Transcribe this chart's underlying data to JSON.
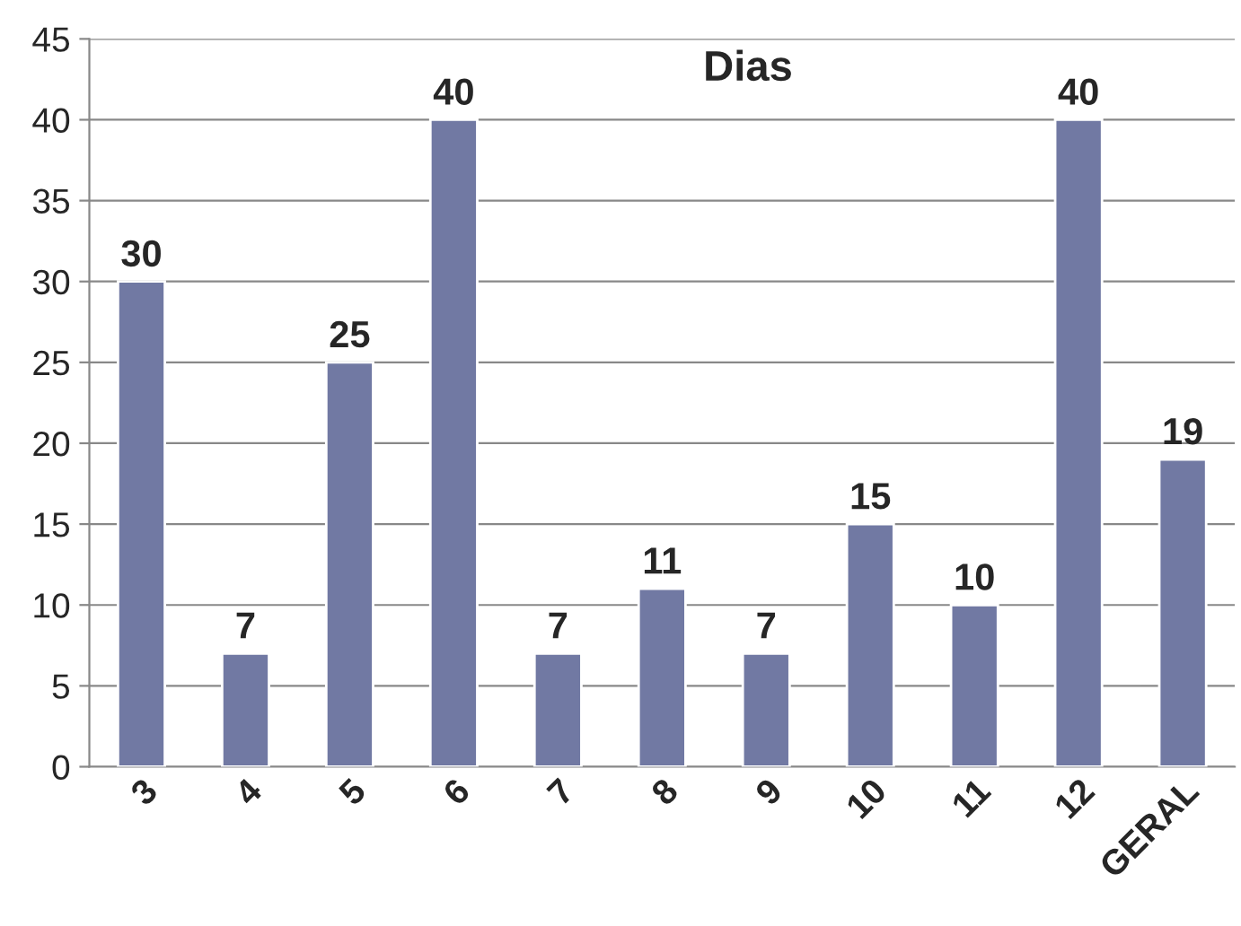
{
  "chart_data": {
    "type": "bar",
    "title": "Dias",
    "categories": [
      "3",
      "4",
      "5",
      "6",
      "7",
      "8",
      "9",
      "10",
      "11",
      "12",
      "GERAL"
    ],
    "values": [
      30,
      7,
      25,
      40,
      7,
      11,
      7,
      15,
      10,
      40,
      19
    ],
    "color": "#7179a3",
    "ylim": [
      0,
      45
    ],
    "yticks": [
      0,
      5,
      10,
      15,
      20,
      25,
      30,
      35,
      40,
      45
    ],
    "grid": "y",
    "data_labels": true
  }
}
